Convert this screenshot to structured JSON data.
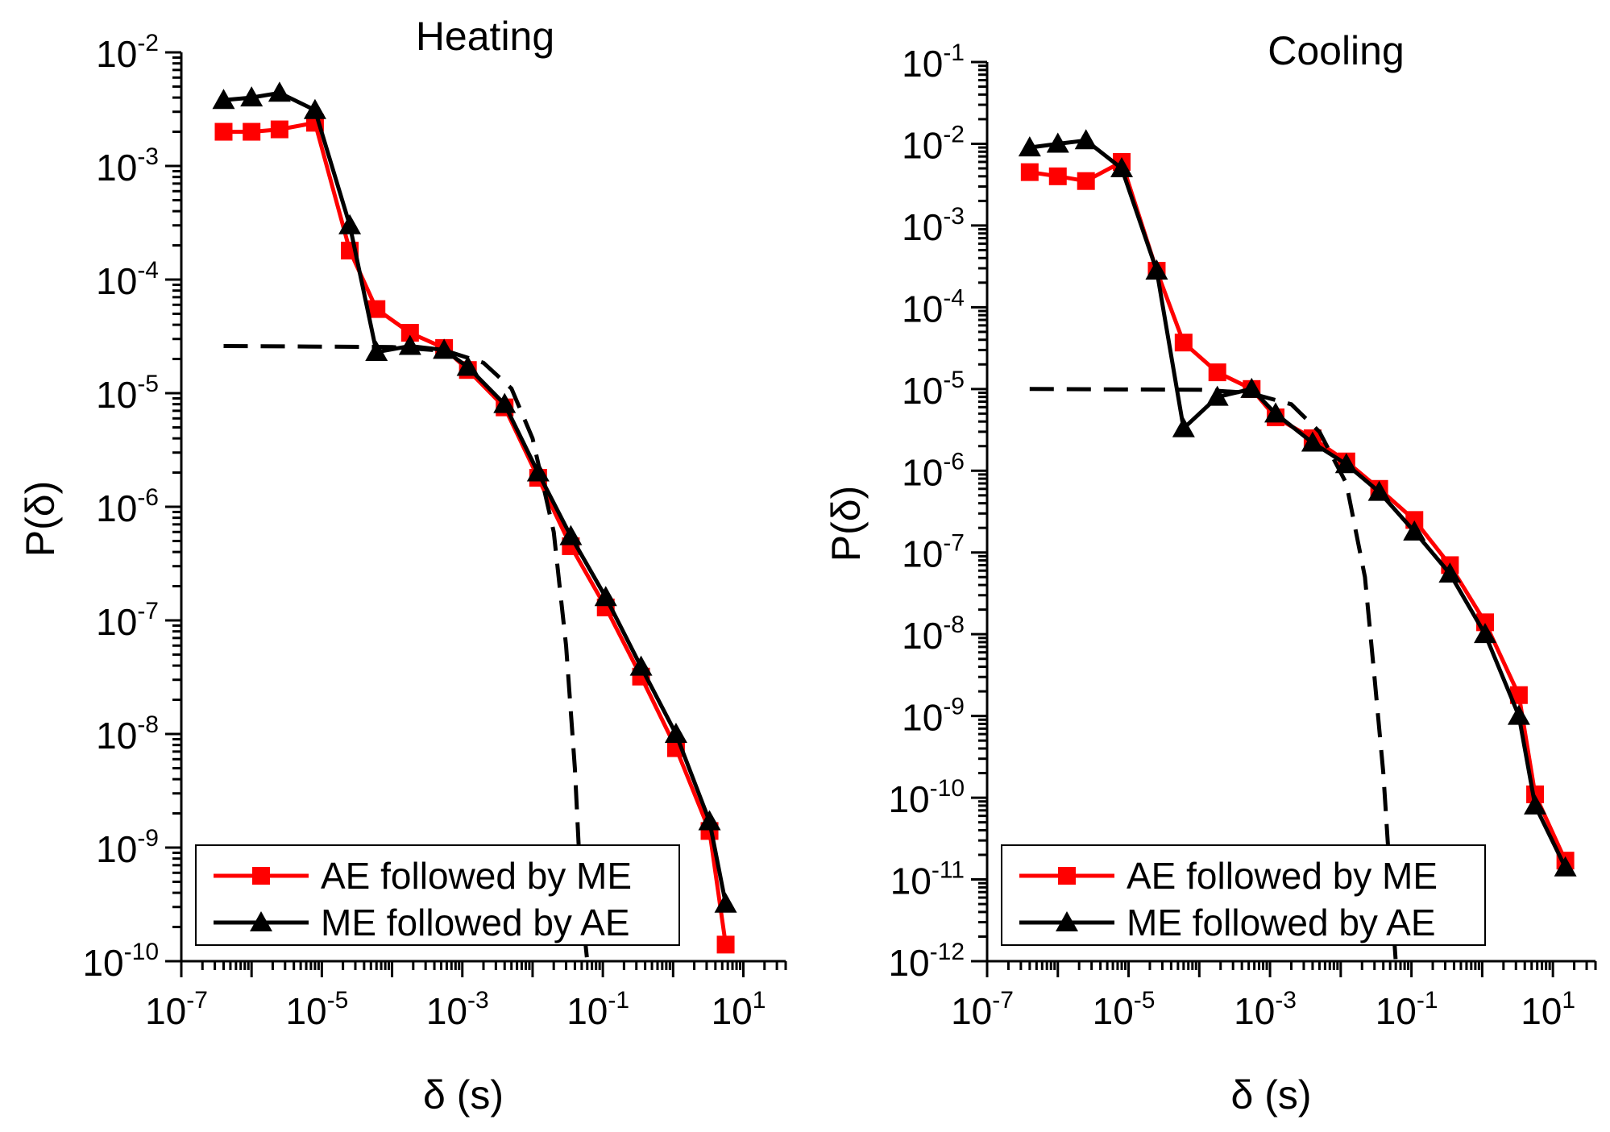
{
  "chart_data": [
    {
      "type": "line",
      "title": "Heating",
      "xlabel": "δ (s)",
      "ylabel": "P(δ)",
      "x_scale": "log",
      "y_scale": "log",
      "xlim": [
        1e-07,
        40
      ],
      "ylim": [
        1e-10,
        0.01
      ],
      "x_ticks": [
        "10^-7",
        "10^-5",
        "10^-3",
        "10^-1",
        "10^1"
      ],
      "y_ticks": [
        "10^-10",
        "10^-9",
        "10^-8",
        "10^-7",
        "10^-6",
        "10^-5",
        "10^-4",
        "10^-3",
        "10^-2"
      ],
      "legend_position": "bottom-left",
      "series": [
        {
          "name": "AE followed by ME",
          "color": "#ff0000",
          "marker": "square",
          "x": [
            4e-07,
            1e-06,
            2.5e-06,
            8e-06,
            2.5e-05,
            6e-05,
            0.00018,
            0.00055,
            0.0012,
            0.004,
            0.012,
            0.035,
            0.11,
            0.35,
            1.1,
            3.3,
            5.6
          ],
          "y": [
            0.002,
            0.002,
            0.0021,
            0.0024,
            0.00018,
            5.5e-05,
            3.4e-05,
            2.5e-05,
            1.6e-05,
            7.5e-06,
            1.8e-06,
            4.5e-07,
            1.3e-07,
            3.2e-08,
            7.5e-09,
            1.4e-09,
            1.4e-10
          ]
        },
        {
          "name": "ME followed by AE",
          "color": "#000000",
          "marker": "triangle",
          "x": [
            4e-07,
            1e-06,
            2.5e-06,
            8e-06,
            2.5e-05,
            6e-05,
            0.00018,
            0.00055,
            0.0012,
            0.004,
            0.012,
            0.035,
            0.11,
            0.35,
            1.1,
            3.3,
            5.6
          ],
          "y": [
            0.0038,
            0.004,
            0.0044,
            0.0031,
            0.0003,
            2.3e-05,
            2.6e-05,
            2.4e-05,
            1.7e-05,
            8e-06,
            2e-06,
            5.5e-07,
            1.6e-07,
            3.9e-08,
            1e-08,
            1.7e-09,
            3.2e-10
          ]
        },
        {
          "name": "",
          "color": "#000000",
          "style": "dashed",
          "x": [
            4e-07,
            0.0001,
            0.0006,
            0.002,
            0.005,
            0.01,
            0.02,
            0.03,
            0.04,
            0.05,
            0.06
          ],
          "y": [
            2.6e-05,
            2.55e-05,
            2.35e-05,
            1.85e-05,
            1.1e-05,
            4e-06,
            6e-07,
            6e-08,
            5e-09,
            3e-10,
            1e-10
          ]
        }
      ]
    },
    {
      "type": "line",
      "title": "Cooling",
      "xlabel": "δ (s)",
      "ylabel": "P(δ)",
      "x_scale": "log",
      "y_scale": "log",
      "xlim": [
        1e-07,
        40
      ],
      "ylim": [
        1e-12,
        0.1
      ],
      "x_ticks": [
        "10^-7",
        "10^-5",
        "10^-3",
        "10^-1",
        "10^1"
      ],
      "y_ticks": [
        "10^-12",
        "10^-11",
        "10^-10",
        "10^-9",
        "10^-8",
        "10^-7",
        "10^-6",
        "10^-5",
        "10^-4",
        "10^-3",
        "10^-2",
        "10^-1"
      ],
      "legend_position": "bottom-left",
      "series": [
        {
          "name": "AE followed by ME",
          "color": "#ff0000",
          "marker": "square",
          "x": [
            4e-07,
            1e-06,
            2.5e-06,
            8e-06,
            2.5e-05,
            6e-05,
            0.00018,
            0.00055,
            0.0012,
            0.004,
            0.012,
            0.035,
            0.11,
            0.35,
            1.1,
            3.3,
            5.6,
            15
          ],
          "y": [
            0.0045,
            0.004,
            0.0035,
            0.006,
            0.00028,
            3.7e-05,
            1.6e-05,
            1e-05,
            4.5e-06,
            2.5e-06,
            1.3e-06,
            6e-07,
            2.5e-07,
            7e-08,
            1.4e-08,
            1.8e-09,
            1.1e-10,
            1.7e-11
          ]
        },
        {
          "name": "ME followed by AE",
          "color": "#000000",
          "marker": "triangle",
          "x": [
            4e-07,
            1e-06,
            2.5e-06,
            8e-06,
            2.5e-05,
            6e-05,
            0.00018,
            0.00055,
            0.0012,
            0.004,
            0.012,
            0.035,
            0.11,
            0.35,
            1.1,
            3.3,
            5.6,
            15
          ],
          "y": [
            0.009,
            0.01,
            0.011,
            0.005,
            0.00028,
            3.3e-06,
            8e-06,
            1e-05,
            5e-06,
            2.2e-06,
            1.2e-06,
            5.5e-07,
            1.8e-07,
            5.5e-08,
            1e-08,
            1e-09,
            8e-11,
            1.4e-11
          ]
        },
        {
          "name": "",
          "color": "#000000",
          "style": "dashed",
          "x": [
            4e-07,
            0.0001,
            0.0005,
            0.002,
            0.005,
            0.012,
            0.022,
            0.03,
            0.04,
            0.05,
            0.06
          ],
          "y": [
            1e-05,
            9.8e-06,
            9e-06,
            6.5e-06,
            3e-06,
            7e-07,
            5e-08,
            3e-09,
            2e-10,
            1e-11,
            1e-12
          ]
        }
      ]
    }
  ]
}
